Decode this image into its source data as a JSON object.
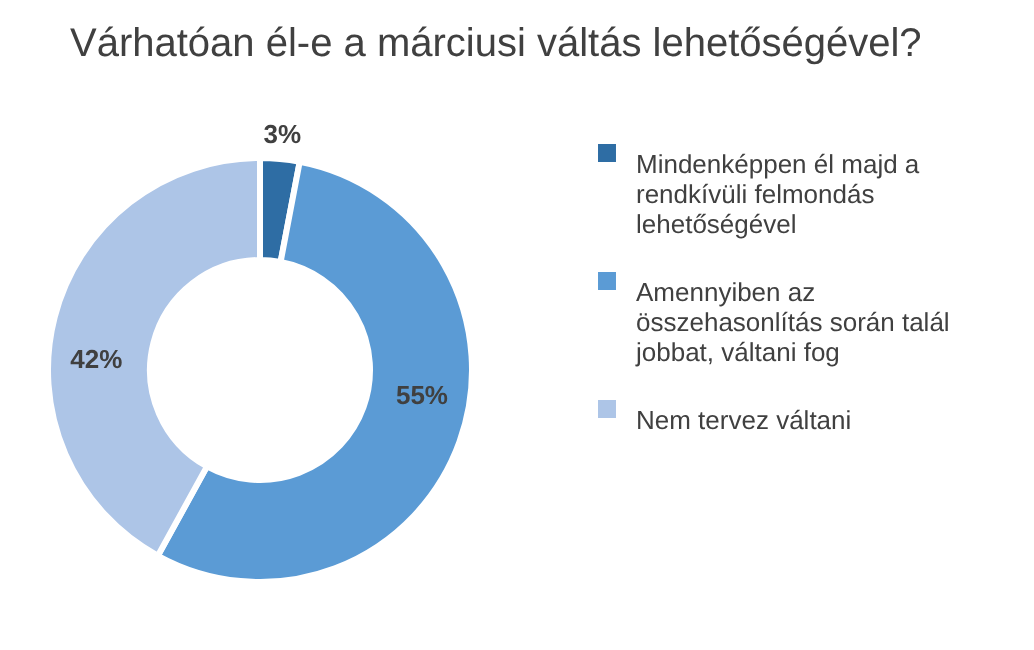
{
  "chart_data": {
    "type": "donut",
    "title": "Várhatóan él-e a márciusi váltás lehetőségével?",
    "categories": [
      "Mindenképpen él majd a rendkívüli felmondás lehetőségével",
      "Amennyiben az összehasonlítás során talál jobbat, váltani fog",
      "Nem tervez váltani"
    ],
    "values": [
      3,
      55,
      42
    ],
    "colors": [
      "#2e6da4",
      "#5b9bd5",
      "#adc5e7"
    ],
    "value_labels": [
      "3%",
      "55%",
      "42%"
    ],
    "legend": "right"
  }
}
